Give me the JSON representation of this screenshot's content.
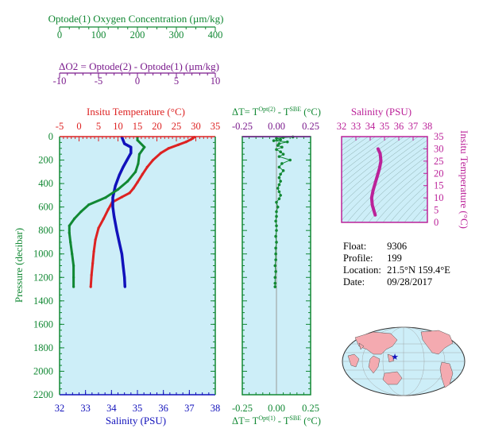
{
  "colors": {
    "oxygen": "#118833",
    "delta_o2": "#7a1a8c",
    "temperature": "#dd2222",
    "salinity": "#1111bb",
    "pressure": "#118833",
    "delta_t": "#118833",
    "sal_inset": "#bb2299",
    "panel_bg": "#cdeef8",
    "map_bg": "#cdeef8",
    "land": "#f4aab0"
  },
  "info": {
    "float_label": "Float:",
    "float_value": "9306",
    "profile_label": "Profile:",
    "profile_value": "199",
    "location_label": "Location:",
    "location_value": "21.5°N  159.4°E",
    "date_label": "Date:",
    "date_value": "09/28/2017"
  },
  "chart_data": [
    {
      "type": "line",
      "panel": "main",
      "ylabel": "Pressure (decibar)",
      "yticks": [
        "0",
        "200",
        "400",
        "600",
        "800",
        "1000",
        "1200",
        "1400",
        "1600",
        "1800",
        "2000",
        "2200"
      ],
      "ylim": [
        2200,
        0
      ],
      "axes": {
        "oxygen": {
          "label": "Optode(1) Oxygen Concentration (µm/kg)",
          "ticks": [
            "0",
            "100",
            "200",
            "300",
            "400"
          ],
          "range": [
            0,
            400
          ]
        },
        "delta_o2": {
          "label": "ΔO2 = Optode(2) - Optode(1)   (µm/kg)",
          "ticks": [
            "-10",
            "-5",
            "0",
            "5",
            "10"
          ],
          "range": [
            -10,
            10
          ]
        },
        "temperature": {
          "label": "Insitu Temperature (°C)",
          "ticks": [
            "-5",
            "0",
            "5",
            "10",
            "15",
            "20",
            "25",
            "30",
            "35"
          ],
          "range": [
            -5,
            35
          ]
        },
        "salinity": {
          "label": "Salinity (PSU)",
          "ticks": [
            "32",
            "33",
            "34",
            "35",
            "36",
            "37",
            "38"
          ],
          "range": [
            32,
            38
          ]
        }
      },
      "series": [
        {
          "name": "Temperature",
          "axis": "temperature",
          "points": [
            [
              29.6,
              5
            ],
            [
              29.2,
              15
            ],
            [
              28.7,
              25
            ],
            [
              27.5,
              45
            ],
            [
              25.5,
              70
            ],
            [
              23,
              100
            ],
            [
              21,
              140
            ],
            [
              19,
              200
            ],
            [
              17.5,
              260
            ],
            [
              16.3,
              320
            ],
            [
              15,
              390
            ],
            [
              14,
              440
            ],
            [
              13,
              480
            ],
            [
              11,
              515
            ],
            [
              8.5,
              560
            ],
            [
              7.5,
              620
            ],
            [
              6.3,
              700
            ],
            [
              5,
              780
            ],
            [
              4.2,
              880
            ],
            [
              3.8,
              980
            ],
            [
              3.5,
              1080
            ],
            [
              3.2,
              1180
            ],
            [
              3.0,
              1280
            ]
          ]
        },
        {
          "name": "Salinity",
          "axis": "salinity",
          "points": [
            [
              34.4,
              5
            ],
            [
              34.5,
              60
            ],
            [
              34.75,
              90
            ],
            [
              34.75,
              140
            ],
            [
              34.6,
              200
            ],
            [
              34.45,
              260
            ],
            [
              34.3,
              330
            ],
            [
              34.15,
              420
            ],
            [
              34.05,
              520
            ],
            [
              34.05,
              600
            ],
            [
              34.1,
              680
            ],
            [
              34.2,
              800
            ],
            [
              34.3,
              900
            ],
            [
              34.4,
              1000
            ],
            [
              34.45,
              1100
            ],
            [
              34.5,
              1200
            ],
            [
              34.52,
              1280
            ]
          ]
        },
        {
          "name": "Oxygen",
          "axis": "oxygen",
          "points": [
            [
              200,
              10
            ],
            [
              200,
              30
            ],
            [
              218,
              90
            ],
            [
              205,
              150
            ],
            [
              202,
              230
            ],
            [
              195,
              300
            ],
            [
              175,
              380
            ],
            [
              150,
              450
            ],
            [
              118,
              520
            ],
            [
              75,
              580
            ],
            [
              55,
              640
            ],
            [
              38,
              700
            ],
            [
              25,
              760
            ],
            [
              25,
              820
            ],
            [
              28,
              900
            ],
            [
              32,
              1000
            ],
            [
              36,
              1100
            ],
            [
              36,
              1200
            ],
            [
              36,
              1280
            ]
          ]
        },
        {
          "name": "ΔO2",
          "axis": "delta_o2",
          "points": []
        }
      ]
    },
    {
      "type": "scatter",
      "panel": "delta_t",
      "title": "ΔT= T^Opt(2) - T^SBE (°C)",
      "xlabel": "ΔT= T^Opt(1) - T^SBE (°C)",
      "xticks": [
        "-0.25",
        "0.00",
        "0.25"
      ],
      "xlim": [
        -0.25,
        0.25
      ],
      "ylim": [
        2200,
        0
      ],
      "points": [
        [
          0.12,
          3
        ],
        [
          0.05,
          8
        ],
        [
          0.0,
          15
        ],
        [
          0.03,
          25
        ],
        [
          -0.02,
          35
        ],
        [
          0.08,
          45
        ],
        [
          0.02,
          60
        ],
        [
          0.01,
          75
        ],
        [
          0.04,
          90
        ],
        [
          0.0,
          110
        ],
        [
          0.03,
          130
        ],
        [
          0.05,
          150
        ],
        [
          0.02,
          170
        ],
        [
          0.1,
          200
        ],
        [
          0.04,
          230
        ],
        [
          0.02,
          260
        ],
        [
          0.05,
          290
        ],
        [
          0.03,
          320
        ],
        [
          0.02,
          350
        ],
        [
          0.03,
          380
        ],
        [
          0.02,
          410
        ],
        [
          0.01,
          440
        ],
        [
          0.02,
          470
        ],
        [
          0.03,
          500
        ],
        [
          0.02,
          530
        ],
        [
          0.0,
          560
        ],
        [
          0.01,
          600
        ],
        [
          0.0,
          640
        ],
        [
          0.0,
          680
        ],
        [
          -0.005,
          720
        ],
        [
          0.0,
          760
        ],
        [
          0.0,
          800
        ],
        [
          -0.005,
          850
        ],
        [
          0.0,
          900
        ],
        [
          -0.005,
          950
        ],
        [
          -0.005,
          1000
        ],
        [
          -0.005,
          1050
        ],
        [
          -0.01,
          1100
        ],
        [
          -0.005,
          1150
        ],
        [
          -0.01,
          1200
        ],
        [
          -0.01,
          1250
        ],
        [
          -0.01,
          1280
        ]
      ]
    },
    {
      "type": "line",
      "panel": "ts_inset",
      "xlabel": "Salinity (PSU)",
      "ylabel": "Insitu Temperature (°C)",
      "xticks": [
        "32",
        "33",
        "34",
        "35",
        "36",
        "37",
        "38"
      ],
      "yticks": [
        "0",
        "5",
        "10",
        "15",
        "20",
        "25",
        "30",
        "35"
      ],
      "xlim": [
        32,
        38
      ],
      "ylim": [
        0,
        35
      ],
      "points": [
        [
          34.35,
          3
        ],
        [
          34.25,
          5
        ],
        [
          34.15,
          7
        ],
        [
          34.1,
          10
        ],
        [
          34.2,
          13
        ],
        [
          34.35,
          16
        ],
        [
          34.5,
          19
        ],
        [
          34.65,
          22
        ],
        [
          34.75,
          25
        ],
        [
          34.7,
          28
        ],
        [
          34.55,
          30
        ]
      ]
    }
  ]
}
